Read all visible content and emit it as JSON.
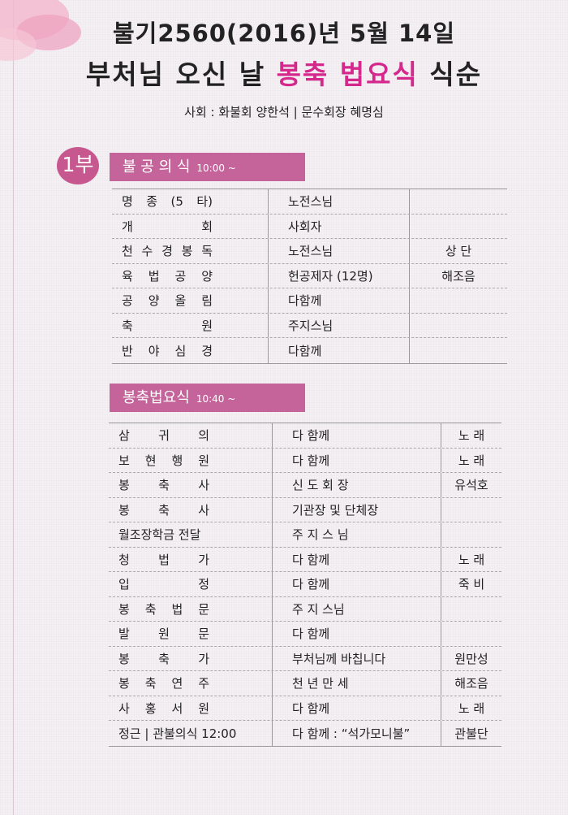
{
  "header": {
    "date_line": "불기2560(2016)년 5월 14일",
    "title_pre": "부처님 오신 날 ",
    "title_highlight": "봉축 법요식",
    "title_post": " 식순",
    "host_line": "사회 : 화불회 양한석 | 문수회장 혜명심"
  },
  "colors": {
    "accent": "#c4649a",
    "highlight": "#d5288c"
  },
  "part1": {
    "badge": "1부",
    "title": "불 공 의 식",
    "time": "10:00 ~",
    "rows": [
      {
        "item": "명 종 (5 타)",
        "by": "노전스님",
        "note": ""
      },
      {
        "item": "개 회",
        "by": "사회자",
        "note": ""
      },
      {
        "item": "천 수 경 봉 독",
        "by": "노전스님",
        "note": "상 단"
      },
      {
        "item": "육 법 공 양",
        "by": "헌공제자 (12명)",
        "note": "해조음"
      },
      {
        "item": "공 양 올 림",
        "by": "다함께",
        "note": ""
      },
      {
        "item": "축 원",
        "by": "주지스님",
        "note": ""
      },
      {
        "item": "반 야 심 경",
        "by": "다함께",
        "note": ""
      }
    ]
  },
  "part2": {
    "title": "봉축법요식",
    "time": "10:40 ~",
    "rows": [
      {
        "item": "삼 귀 의",
        "by": "다 함께",
        "note": "노 래"
      },
      {
        "item": "보 현 행 원",
        "by": "다 함께",
        "note": "노 래"
      },
      {
        "item": "봉 축 사",
        "by": "신 도 회 장",
        "note": "유석호"
      },
      {
        "item": "봉 축 사",
        "by": "기관장 및 단체장",
        "note": ""
      },
      {
        "item": "월조장학금 전달",
        "by": "주 지 스 님",
        "note": ""
      },
      {
        "item": "청 법 가",
        "by": "다 함께",
        "note": "노 래"
      },
      {
        "item": "입 정",
        "by": "다 함께",
        "note": "죽 비"
      },
      {
        "item": "봉 축 법 문",
        "by": "주 지 스님",
        "note": ""
      },
      {
        "item": "발 원 문",
        "by": "다 함께",
        "note": ""
      },
      {
        "item": "봉 축 가",
        "by": "부처님께 바칩니다",
        "note": "원만성"
      },
      {
        "item": "봉 축 연 주",
        "by": "천 년 만 세",
        "note": "해조음"
      },
      {
        "item": "사 홍 서 원",
        "by": "다 함께",
        "note": "노 래"
      },
      {
        "item": "정근 | 관불의식 12:00",
        "by": "다 함께 : “석가모니불”",
        "note": "관불단"
      }
    ]
  }
}
